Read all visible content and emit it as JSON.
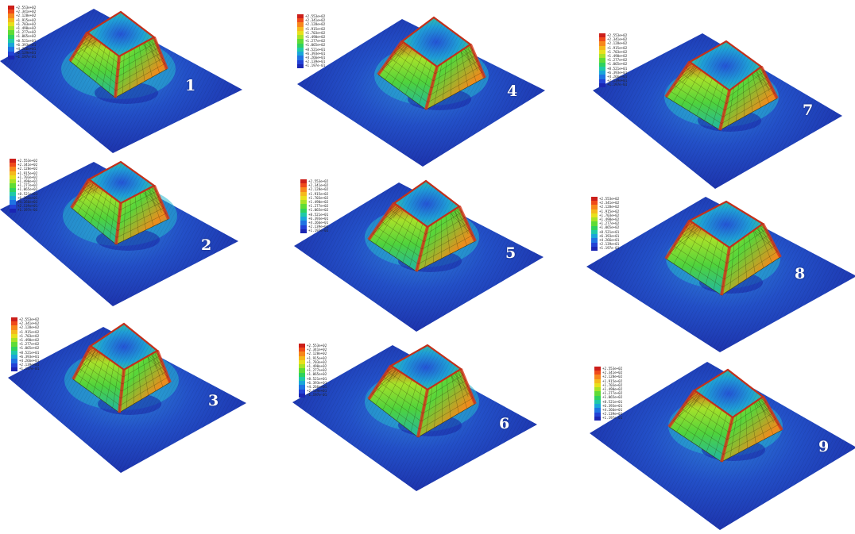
{
  "legend_colors": [
    "#cc1f1a",
    "#ef4a1b",
    "#f7871c",
    "#f5b91c",
    "#e8e01c",
    "#a8e326",
    "#5fdc36",
    "#2ed25e",
    "#1fc9a8",
    "#1aa6d9",
    "#1f73e3",
    "#2242d6",
    "#1a25b3"
  ],
  "legend_ticks": [
    "+2.553e+02",
    "+2.341e+02",
    "+2.128e+02",
    "+1.915e+02",
    "+1.703e+02",
    "+1.490e+02",
    "+1.277e+02",
    "+1.065e+02",
    "+8.521e+01",
    "+6.393e+01",
    "+4.266e+01",
    "+2.139e+01",
    "+1.197e-01"
  ],
  "panels": [
    {
      "label": "1"
    },
    {
      "label": "2"
    },
    {
      "label": "3"
    },
    {
      "label": "4"
    },
    {
      "label": "5"
    },
    {
      "label": "6"
    },
    {
      "label": "7"
    },
    {
      "label": "8"
    },
    {
      "label": "9"
    }
  ]
}
